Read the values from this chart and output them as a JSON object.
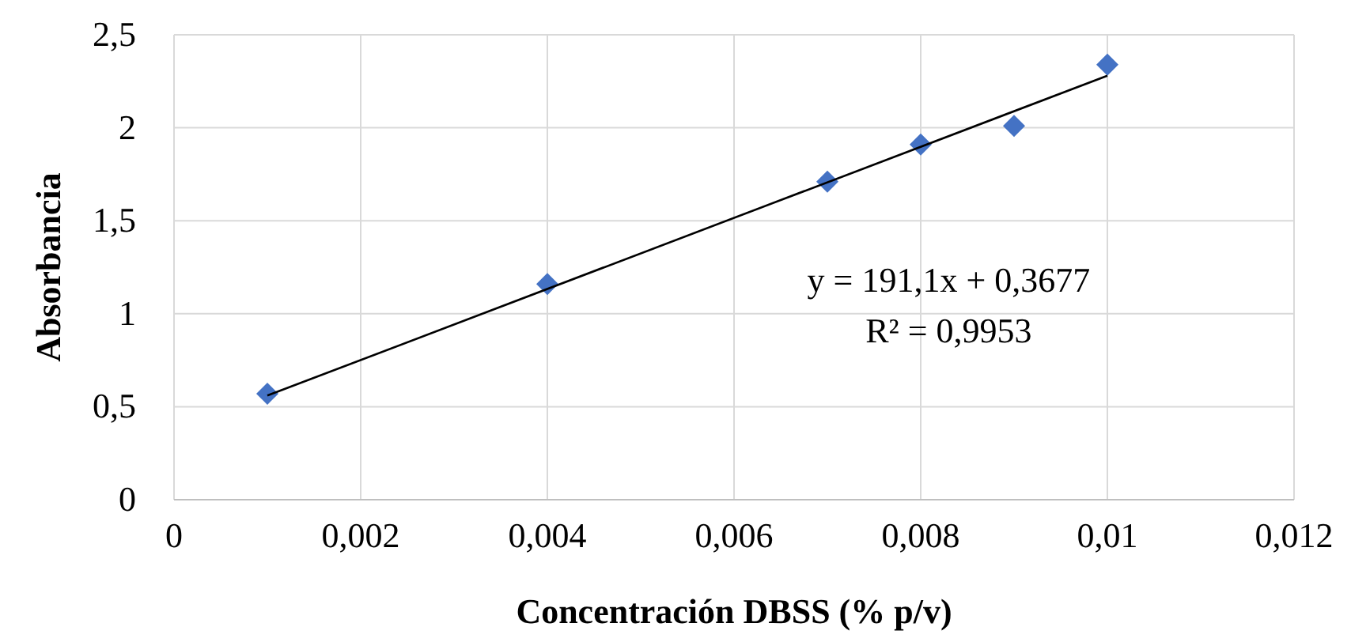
{
  "chart_data": {
    "type": "scatter",
    "xlabel": "Concentración DBSS (% p/v)",
    "ylabel": "Absorbancia",
    "xlim": [
      0,
      0.012
    ],
    "xticks": [
      0,
      {
        "value": 0.002,
        "label": "0,002"
      },
      {
        "value": 0.004,
        "label": "0,004"
      },
      {
        "value": 0.006,
        "label": "0,006"
      },
      {
        "value": 0.008,
        "label": "0,008"
      },
      {
        "value": 0.01,
        "label": "0,01"
      },
      {
        "value": 0.012,
        "label": "0,012"
      }
    ],
    "ylim": [
      0,
      2.5
    ],
    "yticks": [
      0,
      {
        "value": 0.5,
        "label": "0,5"
      },
      1,
      {
        "value": 1.5,
        "label": "1,5"
      },
      2,
      {
        "value": 2.5,
        "label": "2,5"
      }
    ],
    "grid": true,
    "marker": "diamond",
    "series": [
      {
        "color": "#4472c4",
        "x": [
          0.001,
          0.004,
          0.007,
          0.008,
          0.009,
          0.01
        ],
        "values": [
          0.57,
          1.16,
          1.71,
          1.91,
          2.01,
          2.34
        ]
      },
      {
        "type": "line",
        "color": "#000000",
        "marker": "none",
        "x": [
          0.001,
          0.01
        ],
        "values": [
          0.56,
          2.28
        ]
      }
    ],
    "annotations": [
      "y = 191,1x + 0,3677",
      "R² = 0,9953"
    ]
  }
}
